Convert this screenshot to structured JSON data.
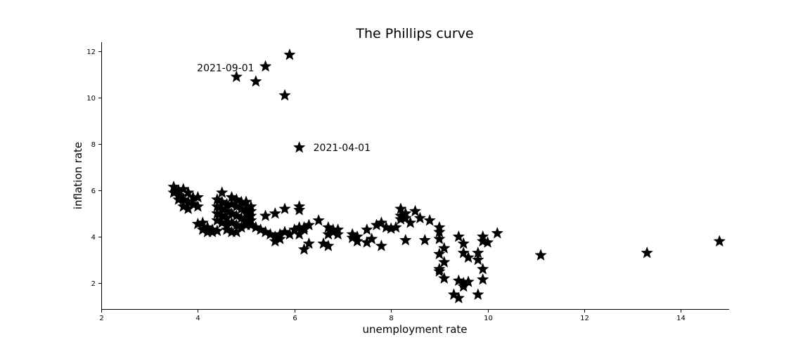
{
  "chart_data": {
    "type": "scatter",
    "title": "The Phillips curve",
    "xlabel": "unemployment rate",
    "ylabel": "inflation rate",
    "xlim": [
      2,
      15
    ],
    "ylim": [
      0.85,
      12.4
    ],
    "xticks": [
      2,
      4,
      6,
      8,
      10,
      12,
      14
    ],
    "yticks": [
      2,
      4,
      6,
      8,
      10,
      12
    ],
    "marker": "star",
    "marker_color": "#000000",
    "grid": false,
    "annotations": [
      {
        "text": "2021-09-01",
        "x": 5.4,
        "y": 11.3,
        "align": "left-of-point"
      },
      {
        "text": "2021-04-01",
        "x": 6.1,
        "y": 7.85,
        "align": "right-of-point"
      }
    ],
    "points": [
      [
        5.9,
        11.85
      ],
      [
        5.4,
        11.35
      ],
      [
        4.8,
        10.9
      ],
      [
        5.2,
        10.7
      ],
      [
        5.8,
        10.1
      ],
      [
        6.1,
        7.85
      ],
      [
        3.5,
        6.15
      ],
      [
        3.6,
        6.0
      ],
      [
        3.7,
        6.05
      ],
      [
        3.5,
        5.9
      ],
      [
        3.6,
        5.8
      ],
      [
        3.8,
        5.9
      ],
      [
        3.9,
        5.7
      ],
      [
        3.7,
        5.6
      ],
      [
        3.8,
        5.5
      ],
      [
        4.0,
        5.7
      ],
      [
        3.9,
        5.4
      ],
      [
        3.7,
        5.3
      ],
      [
        3.8,
        5.2
      ],
      [
        4.0,
        5.3
      ],
      [
        3.6,
        5.6
      ],
      [
        3.55,
        5.95
      ],
      [
        3.65,
        5.75
      ],
      [
        4.5,
        5.9
      ],
      [
        4.4,
        5.6
      ],
      [
        4.5,
        5.5
      ],
      [
        4.6,
        5.4
      ],
      [
        4.4,
        5.3
      ],
      [
        4.5,
        5.2
      ],
      [
        4.6,
        5.1
      ],
      [
        4.4,
        5.0
      ],
      [
        4.5,
        4.9
      ],
      [
        4.6,
        4.8
      ],
      [
        4.4,
        4.7
      ],
      [
        4.5,
        4.6
      ],
      [
        4.6,
        4.5
      ],
      [
        4.7,
        5.7
      ],
      [
        4.8,
        5.6
      ],
      [
        4.9,
        5.5
      ],
      [
        4.7,
        5.4
      ],
      [
        4.8,
        5.3
      ],
      [
        4.9,
        5.2
      ],
      [
        4.7,
        5.0
      ],
      [
        4.8,
        4.9
      ],
      [
        4.9,
        4.8
      ],
      [
        4.7,
        4.6
      ],
      [
        4.8,
        4.5
      ],
      [
        4.6,
        4.3
      ],
      [
        4.7,
        4.2
      ],
      [
        4.8,
        4.2
      ],
      [
        5.0,
        5.5
      ],
      [
        5.1,
        5.3
      ],
      [
        5.0,
        5.2
      ],
      [
        5.1,
        5.1
      ],
      [
        5.0,
        5.0
      ],
      [
        5.1,
        4.9
      ],
      [
        5.0,
        4.8
      ],
      [
        5.1,
        4.7
      ],
      [
        5.0,
        4.6
      ],
      [
        5.1,
        4.5
      ],
      [
        5.2,
        4.4
      ],
      [
        5.3,
        4.3
      ],
      [
        5.4,
        4.2
      ],
      [
        5.5,
        4.1
      ],
      [
        5.4,
        4.9
      ],
      [
        5.6,
        5.0
      ],
      [
        5.8,
        5.2
      ],
      [
        4.9,
        4.4
      ],
      [
        5.0,
        4.5
      ],
      [
        4.0,
        4.55
      ],
      [
        4.1,
        4.6
      ],
      [
        4.2,
        4.4
      ],
      [
        4.1,
        4.3
      ],
      [
        4.2,
        4.2
      ],
      [
        4.3,
        4.2
      ],
      [
        4.4,
        4.25
      ],
      [
        4.3,
        4.3
      ],
      [
        5.6,
        3.8
      ],
      [
        5.7,
        3.9
      ],
      [
        5.6,
        4.0
      ],
      [
        5.7,
        4.1
      ],
      [
        5.8,
        4.2
      ],
      [
        5.9,
        4.1
      ],
      [
        6.0,
        4.3
      ],
      [
        6.1,
        4.4
      ],
      [
        6.1,
        5.3
      ],
      [
        6.1,
        5.15
      ],
      [
        6.2,
        4.4
      ],
      [
        6.3,
        4.5
      ],
      [
        6.2,
        4.3
      ],
      [
        6.1,
        4.1
      ],
      [
        6.3,
        3.7
      ],
      [
        6.2,
        3.45
      ],
      [
        6.5,
        4.7
      ],
      [
        6.6,
        3.7
      ],
      [
        6.7,
        3.6
      ],
      [
        6.7,
        4.1
      ],
      [
        6.8,
        4.2
      ],
      [
        6.9,
        4.1
      ],
      [
        6.8,
        4.3
      ],
      [
        6.7,
        4.4
      ],
      [
        6.9,
        4.3
      ],
      [
        7.2,
        4.1
      ],
      [
        7.3,
        4.0
      ],
      [
        7.2,
        3.95
      ],
      [
        7.3,
        3.8
      ],
      [
        7.5,
        3.75
      ],
      [
        7.6,
        3.9
      ],
      [
        7.5,
        4.3
      ],
      [
        7.7,
        4.5
      ],
      [
        7.8,
        4.6
      ],
      [
        7.9,
        4.4
      ],
      [
        8.0,
        4.35
      ],
      [
        7.8,
        3.6
      ],
      [
        8.1,
        4.4
      ],
      [
        8.2,
        5.2
      ],
      [
        8.3,
        5.0
      ],
      [
        8.2,
        4.9
      ],
      [
        8.3,
        4.8
      ],
      [
        8.2,
        4.75
      ],
      [
        8.4,
        4.6
      ],
      [
        8.5,
        5.1
      ],
      [
        8.6,
        4.8
      ],
      [
        8.8,
        4.7
      ],
      [
        8.3,
        3.85
      ],
      [
        8.7,
        3.85
      ],
      [
        9.0,
        4.4
      ],
      [
        9.0,
        4.2
      ],
      [
        9.0,
        3.9
      ],
      [
        9.1,
        3.5
      ],
      [
        9.0,
        3.25
      ],
      [
        9.1,
        2.9
      ],
      [
        9.0,
        2.6
      ],
      [
        9.0,
        2.5
      ],
      [
        9.1,
        2.2
      ],
      [
        9.3,
        1.5
      ],
      [
        9.4,
        1.35
      ],
      [
        9.4,
        2.1
      ],
      [
        9.5,
        1.85
      ],
      [
        9.6,
        2.05
      ],
      [
        9.5,
        2.0
      ],
      [
        9.4,
        4.0
      ],
      [
        9.5,
        3.7
      ],
      [
        9.5,
        3.3
      ],
      [
        9.6,
        3.1
      ],
      [
        9.8,
        3.3
      ],
      [
        9.8,
        3.0
      ],
      [
        9.8,
        1.5
      ],
      [
        9.9,
        2.6
      ],
      [
        9.9,
        2.15
      ],
      [
        9.9,
        4.0
      ],
      [
        10.0,
        3.75
      ],
      [
        9.9,
        3.8
      ],
      [
        10.2,
        4.15
      ],
      [
        11.1,
        3.2
      ],
      [
        13.3,
        3.3
      ],
      [
        14.8,
        3.8
      ]
    ]
  }
}
